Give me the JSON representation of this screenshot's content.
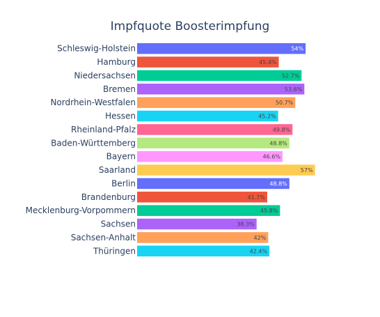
{
  "chart_data": {
    "type": "bar",
    "orientation": "horizontal",
    "title": "Impfquote Boosterimpfung",
    "xlabel": "",
    "ylabel": "",
    "xlim": [
      0,
      60
    ],
    "grid": false,
    "legend": "none",
    "categories": [
      "Schleswig-Holstein",
      "Hamburg",
      "Niedersachsen",
      "Bremen",
      "Nordrhein-Westfalen",
      "Hessen",
      "Rheinland-Pfalz",
      "Baden-Württemberg",
      "Bayern",
      "Saarland",
      "Berlin",
      "Brandenburg",
      "Mecklenburg-Vorpommern",
      "Sachsen",
      "Sachsen-Anhalt",
      "Thüringen"
    ],
    "values": [
      54,
      45.4,
      52.7,
      53.6,
      50.7,
      45.2,
      49.8,
      48.8,
      46.6,
      57,
      48.8,
      41.7,
      45.8,
      38.3,
      42,
      42.4
    ],
    "data_labels": [
      "54%",
      "45.4%",
      "52.7%",
      "53.6%",
      "50.7%",
      "45.2%",
      "49.8%",
      "48.8%",
      "46.6%",
      "57%",
      "48.8%",
      "41.7%",
      "45.8%",
      "38.3%",
      "42%",
      "42.4%"
    ],
    "colors": [
      "#636efa",
      "#ef553b",
      "#00cc96",
      "#ab63fa",
      "#ffa15a",
      "#19d3f3",
      "#ff6692",
      "#b6e880",
      "#ff97ff",
      "#fecb52",
      "#636efa",
      "#ef553b",
      "#00cc96",
      "#ab63fa",
      "#ffa15a",
      "#19d3f3"
    ],
    "label_colors": [
      "#ffffff",
      "#444444",
      "#444444",
      "#444444",
      "#444444",
      "#444444",
      "#444444",
      "#444444",
      "#444444",
      "#444444",
      "#ffffff",
      "#444444",
      "#444444",
      "#444444",
      "#444444",
      "#444444"
    ]
  }
}
